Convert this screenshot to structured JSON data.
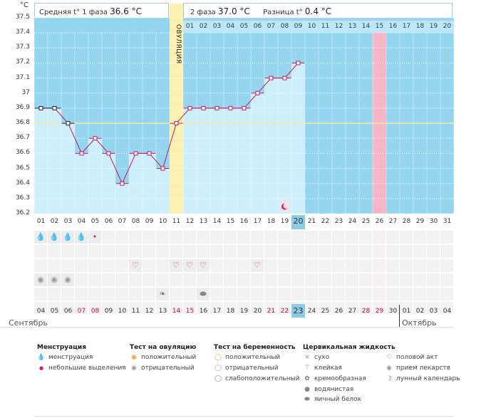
{
  "header": {
    "unit": "°C",
    "phase1_label": "Средняя t° 1 фаза",
    "phase1_value": "36.6 °C",
    "phase2_label": "2 фаза",
    "phase2_value": "37.0 °C",
    "diff_label": "Разница t°",
    "diff_value": "0.4 °C"
  },
  "ovulation_label": "ОВУЛЯЦИЯ",
  "colors": {
    "chart_bg": "#96d5f0",
    "bar": "#cdeefb",
    "line": "#c8185a",
    "ovulation": "#fbf0b0",
    "marked_day": "#f7b6c6",
    "today": "#8ccbe6"
  },
  "cycle_day_numbers": [
    "01",
    "02",
    "03",
    "04",
    "05",
    "06",
    "07",
    "08",
    "09",
    "10",
    "11",
    "12",
    "13",
    "14",
    "15",
    "16",
    "17",
    "18",
    "19",
    "20",
    "21",
    "22",
    "23",
    "24",
    "25",
    "26",
    "27",
    "28",
    "29",
    "30",
    "31"
  ],
  "second_phase_numbers": [
    "01",
    "02",
    "03",
    "04",
    "05",
    "06",
    "07",
    "08",
    "09",
    "10",
    "11",
    "12",
    "13",
    "14",
    "15",
    "16",
    "17",
    "18",
    "19",
    "20"
  ],
  "chart_data": {
    "type": "line",
    "title": "",
    "ylabel": "°C",
    "ylim": [
      36.2,
      37.5
    ],
    "y_ticks": [
      "37.5",
      "37.4",
      "37.3",
      "37.2",
      "37.1",
      "37",
      "36.9",
      "36.8",
      "36.7",
      "36.6",
      "36.5",
      "36.4",
      "36.3",
      "36.2"
    ],
    "cover_line": 36.8,
    "ovulation_day": 11,
    "x": [
      1,
      2,
      3,
      4,
      5,
      6,
      7,
      8,
      9,
      10,
      11,
      12,
      13,
      14,
      15,
      16,
      17,
      18,
      19,
      20
    ],
    "values": [
      36.9,
      36.9,
      36.8,
      36.6,
      36.7,
      36.6,
      36.4,
      36.6,
      36.6,
      36.5,
      36.8,
      36.9,
      36.9,
      36.9,
      36.9,
      36.9,
      37.0,
      37.1,
      37.1,
      37.2
    ],
    "highlight_day": 26,
    "today_day": 20
  },
  "dates": [
    "04",
    "05",
    "06",
    "07",
    "08",
    "09",
    "10",
    "11",
    "12",
    "13",
    "14",
    "15",
    "16",
    "17",
    "18",
    "19",
    "20",
    "21",
    "22",
    "23",
    "24",
    "25",
    "26",
    "27",
    "28",
    "29",
    "30",
    "01",
    "02",
    "03",
    "04"
  ],
  "red_dates": [
    3,
    4,
    10,
    11,
    17,
    18,
    24,
    25
  ],
  "months": {
    "left": "Сентябрь",
    "right": "Октябрь"
  },
  "legend": {
    "menstruation": {
      "title": "Менструация",
      "items": [
        "менструация",
        "небольшие выделения"
      ]
    },
    "ovulation_test": {
      "title": "Тест на овуляцию",
      "items": [
        "положительный",
        "отрицательный"
      ]
    },
    "pregnancy_test": {
      "title": "Тест на беременность",
      "items": [
        "положительный",
        "отрицательный",
        "слабоположительный"
      ]
    },
    "cervical": {
      "title": "Цервикальная жидкость",
      "items": [
        "сухо",
        "клейкая",
        "кремообразная",
        "водянистая",
        "яичный белок"
      ]
    },
    "other": {
      "items": [
        "половой акт",
        "прием лекарств",
        "лунный календарь"
      ]
    }
  }
}
